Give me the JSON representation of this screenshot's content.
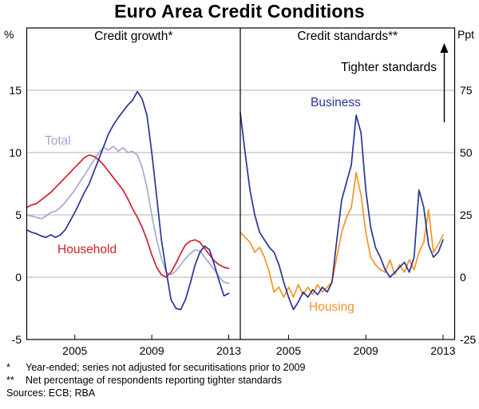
{
  "title": "Euro Area Credit Conditions",
  "footnotes": [
    {
      "marker": "*",
      "text": "Year-ended; series not adjusted for securitisations prior to 2009"
    },
    {
      "marker": "**",
      "text": "Net percentage of respondents reporting tighter standards"
    }
  ],
  "sources": "Sources: ECB; RBA",
  "chart_data": {
    "type": "line",
    "title": "Euro Area Credit Conditions",
    "x_start": 2002.5,
    "x_step": 0.25,
    "x_range": [
      2002.5,
      2013.6
    ],
    "x_ticks": [
      2005,
      2009,
      2013
    ],
    "grid": "horizontal",
    "panels": [
      {
        "title": "Credit growth*",
        "axis_label": "%",
        "axis_side": "left",
        "ylim": [
          -5,
          20
        ],
        "yticks": [
          -5,
          0,
          5,
          10,
          15
        ],
        "series": [
          {
            "name": "Total",
            "color": "#a6a8d4",
            "values": [
              5.0,
              4.9,
              4.8,
              4.7,
              4.9,
              5.2,
              5.3,
              5.6,
              6.0,
              6.5,
              7.0,
              7.6,
              8.2,
              8.8,
              9.4,
              10.0,
              10.4,
              10.2,
              10.5,
              10.1,
              10.4,
              10.0,
              10.1,
              9.8,
              8.8,
              7.2,
              5.0,
              3.0,
              1.5,
              0.4,
              0.2,
              0.5,
              1.0,
              1.5,
              1.9,
              2.2,
              2.1,
              1.6,
              1.1,
              0.6,
              0.0,
              -0.4,
              -0.5
            ]
          },
          {
            "name": "Household",
            "color": "#d0202f",
            "values": [
              5.6,
              5.8,
              5.9,
              6.2,
              6.5,
              6.8,
              7.2,
              7.6,
              8.0,
              8.4,
              8.8,
              9.2,
              9.6,
              9.8,
              9.7,
              9.4,
              9.0,
              8.5,
              8.0,
              7.5,
              7.0,
              6.3,
              5.5,
              4.8,
              4.0,
              3.0,
              1.8,
              0.8,
              0.2,
              0.0,
              0.4,
              1.1,
              1.9,
              2.6,
              2.9,
              3.0,
              2.8,
              2.3,
              1.8,
              1.3,
              1.0,
              0.8,
              0.7
            ]
          },
          {
            "name": "Business",
            "color": "#283593",
            "values": [
              3.8,
              3.6,
              3.5,
              3.3,
              3.2,
              3.4,
              3.2,
              3.4,
              3.8,
              4.5,
              5.2,
              6.0,
              6.8,
              7.5,
              8.5,
              9.5,
              10.5,
              11.5,
              12.2,
              12.8,
              13.3,
              13.8,
              14.2,
              14.9,
              14.3,
              13.0,
              10.0,
              6.5,
              3.0,
              0.5,
              -1.8,
              -2.5,
              -2.6,
              -1.8,
              -0.5,
              1.0,
              2.0,
              2.5,
              2.2,
              1.0,
              -0.3,
              -1.5,
              -1.3
            ]
          }
        ]
      },
      {
        "title": "Credit standards**",
        "axis_label": "Ppt",
        "axis_side": "right",
        "ylim": [
          -25,
          100
        ],
        "yticks": [
          -25,
          0,
          25,
          50,
          75
        ],
        "annotation": "Tighter standards",
        "series": [
          {
            "name": "Housing",
            "color": "#f79323",
            "values": [
              18,
              16,
              14,
              10,
              12,
              8,
              2,
              -6,
              -4,
              -8,
              -4,
              -8,
              -3,
              -7,
              -4,
              -7,
              -3,
              -6,
              -4,
              -2,
              8,
              18,
              24,
              28,
              42,
              33,
              18,
              8,
              5,
              3,
              2,
              7,
              1,
              5,
              2,
              7,
              3,
              10,
              14,
              27,
              10,
              13,
              17
            ]
          },
          {
            "name": "Business",
            "color": "#283593",
            "values": [
              66,
              50,
              35,
              25,
              18,
              15,
              12,
              10,
              5,
              -2,
              -8,
              -13,
              -10,
              -6,
              -8,
              -5,
              -7,
              -4,
              -6,
              -2,
              15,
              31,
              38,
              45,
              65,
              58,
              35,
              20,
              12,
              8,
              3,
              0,
              2,
              4,
              6,
              2,
              8,
              35,
              28,
              13,
              8,
              10,
              15
            ]
          }
        ]
      }
    ]
  }
}
